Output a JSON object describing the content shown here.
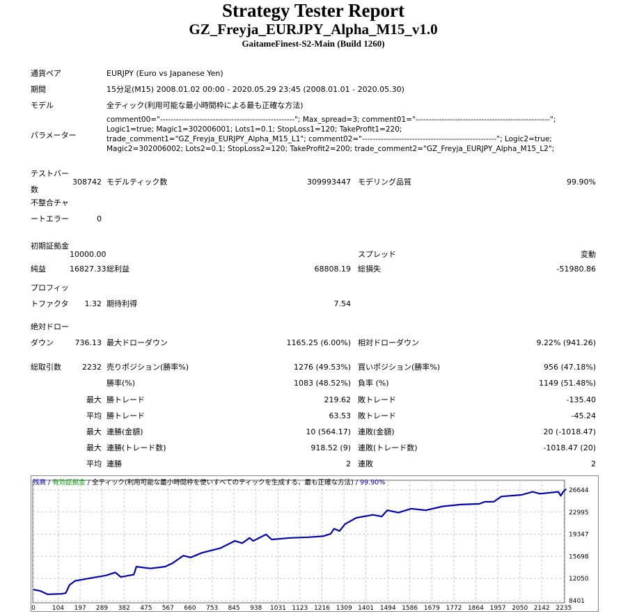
{
  "report": {
    "title": "Strategy Tester Report",
    "ea_name": "GZ_Freyja_EURJPY_Alpha_M15_v1.0",
    "server": "GaitameFinest-S2-Main (Build 1260)"
  },
  "info": [
    {
      "label": "通貨ペア",
      "value": "EURJPY (Euro vs Japanese Yen)"
    },
    {
      "label": "期間",
      "value": "15分足(M15) 2008.01.02 00:00 - 2020.05.29 23:45 (2008.01.01 - 2020.05.30)"
    },
    {
      "label": "モデル",
      "value": "全ティック(利用可能な最小時間枠による最も正確な方法)"
    },
    {
      "label": "パラメーター",
      "value": "comment00=\"---------------------------------------------------\"; Max_spread=3; comment01=\"---------------------------------------------------\"; Logic1=true; Magic1=302006001; Lots1=0.1; StopLoss1=120; TakeProfit1=220; trade_comment1=\"GZ_Freyja_EURJPY_Alpha_M15_L1\"; comment02=\"---------------------------------------------------\"; Logic2=true; Magic2=302006002; Lots2=0.1; StopLoss2=120; TakeProfit2=200; trade_comment2=\"GZ_Freyja_EURJPY_Alpha_M15_L2\";"
    }
  ],
  "stats": [
    [
      "テストバー数",
      "308742",
      "モデルティック数",
      "309993447",
      "モデリング品質",
      "99.90%"
    ],
    [
      "不整合チャートエラー",
      "0",
      "",
      "",
      "",
      ""
    ],
    [
      "初期証拠金",
      "10000.00",
      "",
      "",
      "スプレッド",
      "変動"
    ],
    [
      "純益",
      "16827.33",
      "総利益",
      "68808.19",
      "総損失",
      "-51980.86"
    ],
    [
      "プロフィットファクタ",
      "1.32",
      "期待利得",
      "7.54",
      "",
      ""
    ],
    [
      "絶対ドローダウン",
      "736.13",
      "最大ドローダウン",
      "1165.25 (6.00%)",
      "相対ドローダウン",
      "9.22% (941.26)"
    ],
    [
      "総取引数",
      "2232",
      "売りポジション(勝率%)",
      "1276 (49.53%)",
      "買いポジション(勝率%)",
      "956 (47.18%)"
    ],
    [
      "",
      "",
      "勝率(%)",
      "1083 (48.52%)",
      "負率 (%)",
      "1149 (51.48%)"
    ],
    [
      "",
      "最大",
      "勝トレード",
      "219.62",
      "敗トレード",
      "-135.40"
    ],
    [
      "",
      "平均",
      "勝トレード",
      "63.53",
      "敗トレード",
      "-45.24"
    ],
    [
      "",
      "最大",
      "連勝(金額)",
      "10 (564.17)",
      "連敗(金額)",
      "20 (-1018.47)"
    ],
    [
      "",
      "最大",
      "連勝(トレード数)",
      "918.52 (9)",
      "連敗(トレード数)",
      "-1018.47 (20)"
    ],
    [
      "",
      "平均",
      "連勝",
      "2",
      "連敗",
      "2"
    ]
  ],
  "chart_data": {
    "type": "line",
    "legend": {
      "balance": "残高",
      "sep": " / ",
      "equity": "有効証拠金",
      "model": "全ティック(利用可能な最小時間枠を使いすべてのティックを生成する、最も正確な方法)",
      "quality": "99.90%"
    },
    "colors": {
      "balance": "#0000b0",
      "equity": "#00a000",
      "grid": "#c8c8c8"
    },
    "grid": true,
    "xlim": [
      0,
      2250
    ],
    "ylim": [
      8057,
      28250
    ],
    "x_ticks": [
      0,
      104,
      197,
      289,
      382,
      475,
      567,
      660,
      753,
      845,
      938,
      1031,
      1123,
      1216,
      1309,
      1401,
      1494,
      1586,
      1679,
      1772,
      1864,
      1957,
      2050,
      2142,
      2235
    ],
    "y_ticks": [
      8401,
      12050,
      15698,
      19347,
      22995,
      26644
    ],
    "y_axis_side": "right",
    "series": [
      {
        "name": "残高",
        "points": [
          [
            0,
            10220
          ],
          [
            30,
            10000
          ],
          [
            59,
            9460
          ],
          [
            121,
            9540
          ],
          [
            136,
            9650
          ],
          [
            152,
            10980
          ],
          [
            175,
            11660
          ],
          [
            214,
            11930
          ],
          [
            268,
            12310
          ],
          [
            306,
            12570
          ],
          [
            345,
            13060
          ],
          [
            368,
            12310
          ],
          [
            423,
            12690
          ],
          [
            434,
            14010
          ],
          [
            493,
            13710
          ],
          [
            555,
            14010
          ],
          [
            586,
            14580
          ],
          [
            632,
            15830
          ],
          [
            663,
            15530
          ],
          [
            709,
            16280
          ],
          [
            787,
            17050
          ],
          [
            849,
            18260
          ],
          [
            880,
            17880
          ],
          [
            911,
            18750
          ],
          [
            926,
            18260
          ],
          [
            980,
            19320
          ],
          [
            1004,
            18490
          ],
          [
            1081,
            18750
          ],
          [
            1159,
            18870
          ],
          [
            1220,
            19020
          ],
          [
            1252,
            19400
          ],
          [
            1267,
            20270
          ],
          [
            1290,
            19890
          ],
          [
            1313,
            21030
          ],
          [
            1360,
            22050
          ],
          [
            1430,
            22550
          ],
          [
            1468,
            22280
          ],
          [
            1491,
            23300
          ],
          [
            1538,
            22930
          ],
          [
            1592,
            23570
          ],
          [
            1654,
            23300
          ],
          [
            1724,
            23950
          ],
          [
            1801,
            24250
          ],
          [
            1879,
            24360
          ],
          [
            1902,
            24700
          ],
          [
            1940,
            24700
          ],
          [
            1972,
            25580
          ],
          [
            2057,
            25840
          ],
          [
            2103,
            26340
          ],
          [
            2134,
            26030
          ],
          [
            2212,
            26340
          ],
          [
            2222,
            25690
          ],
          [
            2232,
            26340
          ],
          [
            2245,
            26800
          ]
        ]
      }
    ]
  }
}
